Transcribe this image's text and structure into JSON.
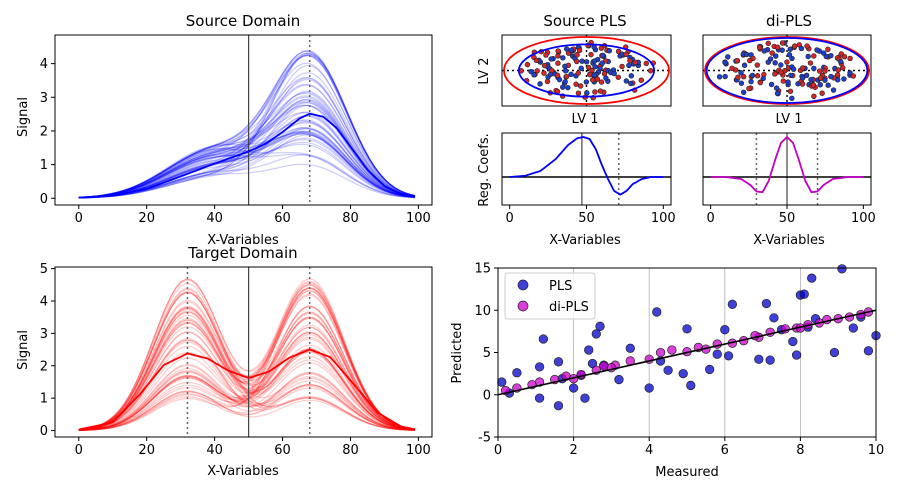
{
  "chart_data": [
    {
      "panel": "source-domain",
      "type": "line",
      "title": "Source Domain",
      "xlabel": "X-Variables",
      "ylabel": "Signal",
      "xlim": [
        -7,
        104
      ],
      "ylim": [
        -0.2,
        4.85
      ],
      "xticks": [
        0,
        20,
        40,
        60,
        80,
        100
      ],
      "yticks": [
        0,
        1,
        2,
        3,
        4
      ],
      "vlines": [
        {
          "x": 50,
          "style": "solid"
        },
        {
          "x": 68,
          "style": "dotted"
        }
      ],
      "colors": {
        "mean": "#0000ff",
        "samples": "#0000ff"
      },
      "mean_series": {
        "x": [
          0,
          10,
          20,
          30,
          40,
          50,
          55,
          60,
          65,
          68,
          72,
          76,
          80,
          85,
          90,
          95,
          99
        ],
        "y": [
          0.02,
          0.08,
          0.28,
          0.65,
          1.03,
          1.39,
          1.62,
          1.97,
          2.37,
          2.51,
          2.42,
          2.08,
          1.53,
          0.85,
          0.36,
          0.12,
          0.05
        ]
      },
      "sample_count": 60,
      "sample_peak_range": [
        0.9,
        4.6
      ]
    },
    {
      "panel": "target-domain",
      "type": "line",
      "title": "Target Domain",
      "xlabel": "X-Variables",
      "ylabel": "Signal",
      "xlim": [
        -7,
        104
      ],
      "ylim": [
        -0.2,
        5.05
      ],
      "xticks": [
        0,
        20,
        40,
        60,
        80,
        100
      ],
      "yticks": [
        0,
        1,
        2,
        3,
        4,
        5
      ],
      "vlines": [
        {
          "x": 32,
          "style": "dotted"
        },
        {
          "x": 50,
          "style": "solid"
        },
        {
          "x": 68,
          "style": "dotted"
        }
      ],
      "colors": {
        "mean": "#ff0000",
        "samples": "#ff0000"
      },
      "mean_series": {
        "x": [
          0,
          10,
          18,
          25,
          32,
          38,
          44,
          50,
          56,
          62,
          68,
          74,
          80,
          88,
          95,
          99
        ],
        "y": [
          0.03,
          0.25,
          1.12,
          2.02,
          2.38,
          2.22,
          1.85,
          1.62,
          1.82,
          2.25,
          2.5,
          2.27,
          1.55,
          0.55,
          0.12,
          0.04
        ]
      },
      "sample_count": 60,
      "sample_peak_range": [
        0.9,
        4.9
      ]
    },
    {
      "panel": "source-pls-scores",
      "type": "scatter",
      "title": "Source PLS",
      "xlabel": "LV 1",
      "ylabel": "LV 2",
      "ellipses": [
        {
          "color": "#ff0000",
          "rx": 1.0,
          "ry": 1.0
        },
        {
          "color": "#0000ff",
          "rx": 0.82,
          "ry": 0.78
        }
      ],
      "point_colors": [
        "#1f3fcf",
        "#d62728"
      ]
    },
    {
      "panel": "di-pls-scores",
      "type": "scatter",
      "title": "di-PLS",
      "xlabel": "LV 1",
      "ylabel": "",
      "ellipses": [
        {
          "color": "#ff0000",
          "rx": 1.0,
          "ry": 1.0
        },
        {
          "color": "#0000ff",
          "rx": 0.98,
          "ry": 0.97
        }
      ],
      "point_colors": [
        "#1f3fcf",
        "#d62728"
      ]
    },
    {
      "panel": "source-pls-coefs",
      "type": "line",
      "title": "",
      "xlabel": "X-Variables",
      "ylabel": "Reg. Coefs.",
      "xlim": [
        -5,
        105
      ],
      "xticks": [
        0,
        50,
        100
      ],
      "vlines": [
        {
          "x": 47,
          "style": "solid"
        },
        {
          "x": 71,
          "style": "dotted"
        }
      ],
      "color": "#0000ff",
      "x": [
        0,
        10,
        20,
        30,
        38,
        44,
        48,
        52,
        56,
        60,
        64,
        68,
        72,
        76,
        80,
        86,
        92,
        100
      ],
      "y": [
        0.0,
        0.03,
        0.15,
        0.45,
        0.8,
        0.97,
        1.0,
        0.95,
        0.7,
        0.3,
        -0.05,
        -0.35,
        -0.44,
        -0.35,
        -0.18,
        -0.05,
        0.0,
        0.0
      ]
    },
    {
      "panel": "di-pls-coefs",
      "type": "line",
      "title": "",
      "xlabel": "X-Variables",
      "ylabel": "",
      "xlim": [
        -5,
        105
      ],
      "xticks": [
        0,
        50,
        100
      ],
      "vlines": [
        {
          "x": 30,
          "style": "dotted"
        },
        {
          "x": 50,
          "style": "solid"
        },
        {
          "x": 70,
          "style": "dotted"
        }
      ],
      "color": "#c000c0",
      "x": [
        0,
        10,
        20,
        26,
        30,
        34,
        38,
        42,
        46,
        50,
        54,
        58,
        62,
        66,
        70,
        74,
        80,
        90,
        100
      ],
      "y": [
        0.0,
        0.0,
        -0.05,
        -0.2,
        -0.36,
        -0.38,
        -0.1,
        0.4,
        0.85,
        1.0,
        0.85,
        0.4,
        -0.1,
        -0.38,
        -0.36,
        -0.2,
        -0.05,
        0.0,
        0.0
      ]
    },
    {
      "panel": "predicted-vs-measured",
      "type": "scatter",
      "title": "",
      "xlabel": "Measured",
      "ylabel": "Predicted",
      "xlim": [
        0,
        10
      ],
      "ylim": [
        -5,
        15
      ],
      "xticks": [
        0,
        2,
        4,
        6,
        8,
        10
      ],
      "yticks": [
        -5,
        0,
        5,
        10,
        15
      ],
      "grid_x": true,
      "legend": "top-left",
      "identity_line": [
        [
          0,
          0
        ],
        [
          10,
          10
        ]
      ],
      "series": [
        {
          "name": "PLS",
          "color": "#0000cc",
          "points": [
            [
              0.1,
              1.5
            ],
            [
              0.3,
              0.2
            ],
            [
              0.5,
              2.6
            ],
            [
              1.1,
              3.3
            ],
            [
              1.1,
              -0.4
            ],
            [
              1.2,
              6.6
            ],
            [
              1.6,
              3.9
            ],
            [
              1.6,
              -1.3
            ],
            [
              1.7,
              1.9
            ],
            [
              2.0,
              0.8
            ],
            [
              2.2,
              2.3
            ],
            [
              2.3,
              -0.4
            ],
            [
              2.4,
              5.3
            ],
            [
              2.5,
              3.7
            ],
            [
              2.6,
              7.2
            ],
            [
              2.7,
              8.1
            ],
            [
              2.8,
              3.5
            ],
            [
              3.2,
              1.8
            ],
            [
              3.5,
              5.5
            ],
            [
              4.0,
              0.8
            ],
            [
              4.2,
              9.8
            ],
            [
              4.3,
              4.0
            ],
            [
              4.5,
              2.9
            ],
            [
              4.9,
              2.5
            ],
            [
              5.0,
              7.8
            ],
            [
              5.1,
              1.1
            ],
            [
              5.6,
              3.0
            ],
            [
              5.8,
              4.8
            ],
            [
              6.0,
              7.7
            ],
            [
              6.1,
              4.6
            ],
            [
              6.2,
              10.7
            ],
            [
              6.9,
              4.2
            ],
            [
              7.1,
              10.8
            ],
            [
              7.2,
              4.1
            ],
            [
              7.3,
              9.1
            ],
            [
              7.5,
              7.7
            ],
            [
              7.8,
              6.3
            ],
            [
              7.9,
              4.7
            ],
            [
              8.0,
              11.8
            ],
            [
              8.1,
              11.9
            ],
            [
              8.2,
              8.0
            ],
            [
              8.3,
              13.8
            ],
            [
              8.4,
              9.0
            ],
            [
              8.9,
              5.0
            ],
            [
              9.1,
              14.9
            ],
            [
              9.4,
              7.9
            ],
            [
              9.6,
              9.2
            ],
            [
              9.8,
              5.2
            ],
            [
              10.0,
              7.0
            ]
          ]
        },
        {
          "name": "di-PLS",
          "color": "#cc00cc",
          "points": [
            [
              0.2,
              0.5
            ],
            [
              0.5,
              0.8
            ],
            [
              0.9,
              1.2
            ],
            [
              1.1,
              1.5
            ],
            [
              1.5,
              1.8
            ],
            [
              1.8,
              2.2
            ],
            [
              2.2,
              2.4
            ],
            [
              2.6,
              2.9
            ],
            [
              2.8,
              3.4
            ],
            [
              3.1,
              3.5
            ],
            [
              3.5,
              4.0
            ],
            [
              4.0,
              4.2
            ],
            [
              4.3,
              5.0
            ],
            [
              4.6,
              5.3
            ],
            [
              5.0,
              5.1
            ],
            [
              5.3,
              5.6
            ],
            [
              5.8,
              6.0
            ],
            [
              6.2,
              6.1
            ],
            [
              6.5,
              6.4
            ],
            [
              6.9,
              6.8
            ],
            [
              7.2,
              7.4
            ],
            [
              7.6,
              7.8
            ],
            [
              7.9,
              7.9
            ],
            [
              8.2,
              8.3
            ],
            [
              8.5,
              8.5
            ],
            [
              8.7,
              8.9
            ],
            [
              9.0,
              9.0
            ],
            [
              9.3,
              9.2
            ],
            [
              9.6,
              9.5
            ],
            [
              9.8,
              9.8
            ],
            [
              2.0,
              1.9
            ],
            [
              3.0,
              3.2
            ],
            [
              5.5,
              5.4
            ],
            [
              6.8,
              7.0
            ],
            [
              8.0,
              7.9
            ]
          ]
        }
      ]
    }
  ]
}
